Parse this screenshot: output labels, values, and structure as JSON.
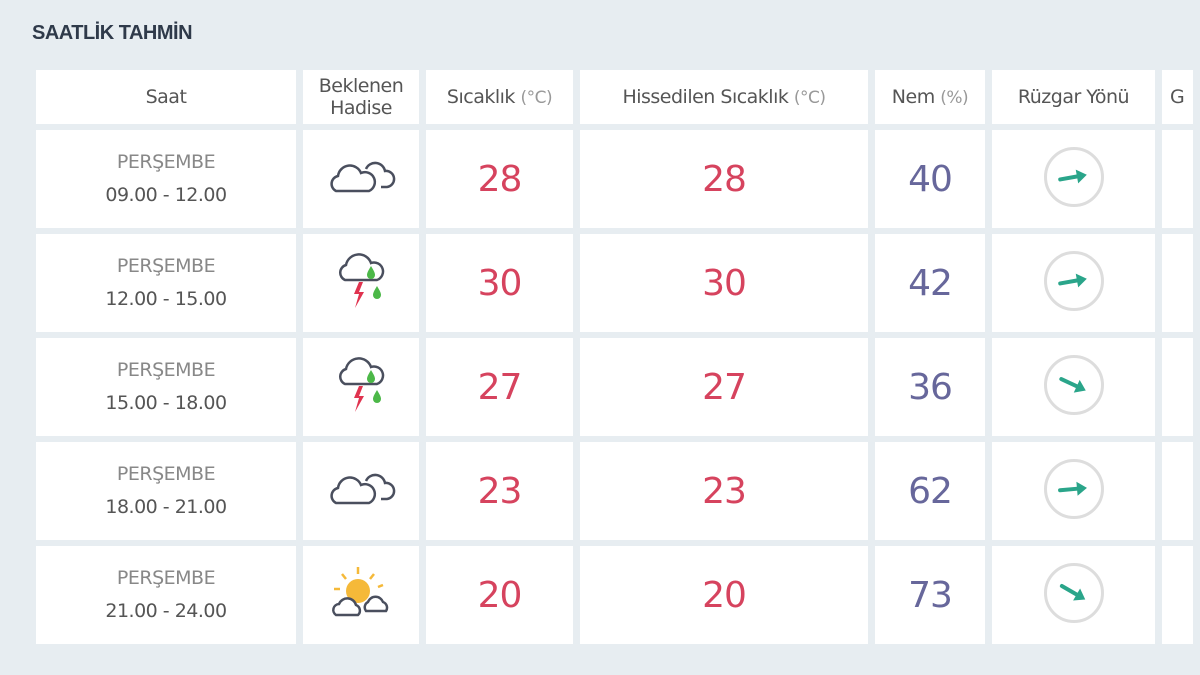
{
  "title": "SAATLİK TAHMİN",
  "headers": {
    "saat": "Saat",
    "hadise_1": "Beklenen",
    "hadise_2": "Hadise",
    "sicaklik": "Sıcaklık",
    "sicaklik_unit": "(°C)",
    "hissedilen": "Hissedilen Sıcaklık",
    "hissedilen_unit": "(°C)",
    "nem": "Nem",
    "nem_unit": "(%)",
    "ruzgar": "Rüzgar Yönü",
    "cut": "G"
  },
  "colors": {
    "temperature": "#d6435e",
    "humidity": "#67679b",
    "wind_arrow": "#2aa58a",
    "lightning": "#e0334f",
    "rain": "#4cb848",
    "sun": "#f5b939"
  },
  "rows": [
    {
      "day": "PERŞEMBE",
      "hours": "09.00 - 12.00",
      "icon": "cloudy-icon",
      "temp": "28",
      "feels": "28",
      "humidity": "40",
      "wind_deg": -10
    },
    {
      "day": "PERŞEMBE",
      "hours": "12.00 - 15.00",
      "icon": "thunderstorm-rain-icon",
      "temp": "30",
      "feels": "30",
      "humidity": "42",
      "wind_deg": -10
    },
    {
      "day": "PERŞEMBE",
      "hours": "15.00 - 18.00",
      "icon": "thunderstorm-rain-icon",
      "temp": "27",
      "feels": "27",
      "humidity": "36",
      "wind_deg": 25
    },
    {
      "day": "PERŞEMBE",
      "hours": "18.00 - 21.00",
      "icon": "cloudy-icon",
      "temp": "23",
      "feels": "23",
      "humidity": "62",
      "wind_deg": -5
    },
    {
      "day": "PERŞEMBE",
      "hours": "21.00 - 24.00",
      "icon": "partly-cloudy-icon",
      "temp": "20",
      "feels": "20",
      "humidity": "73",
      "wind_deg": 30
    }
  ]
}
